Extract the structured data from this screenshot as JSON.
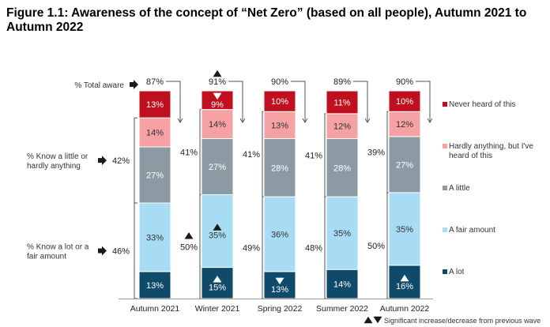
{
  "title": "Figure 1.1: Awareness of the concept of “Net Zero” (based on all people), Autumn 2021 to Autumn 2022",
  "chart_data": {
    "type": "bar",
    "stacked": true,
    "title": "Figure 1.1: Awareness of the concept of “Net Zero” (based on all people), Autumn 2021 to Autumn 2022",
    "categories": [
      "Autumn 2021",
      "Winter 2021",
      "Spring 2022",
      "Summer 2022",
      "Autumn 2022"
    ],
    "unit": "%",
    "ylim": [
      0,
      100
    ],
    "series": [
      {
        "name": "A lot",
        "color": "#0f4a6a",
        "label_color": "#ffffff",
        "values": [
          13,
          15,
          13,
          14,
          16
        ]
      },
      {
        "name": "A fair amount",
        "color": "#a8dcf5",
        "label_color": "#333333",
        "values": [
          33,
          35,
          36,
          35,
          35
        ]
      },
      {
        "name": "A little",
        "color": "#8c9ba3",
        "label_color": "#ffffff",
        "values": [
          27,
          27,
          28,
          28,
          27
        ]
      },
      {
        "name": "Hardly anything, but I've heard of this",
        "color": "#f6a1a3",
        "label_color": "#333333",
        "values": [
          14,
          14,
          13,
          12,
          12
        ]
      },
      {
        "name": "Never heard of this",
        "color": "#c0101f",
        "label_color": "#ffffff",
        "values": [
          13,
          9,
          10,
          11,
          10
        ]
      }
    ],
    "summary_rows": [
      {
        "label": "% Total aware",
        "group": "total",
        "values": [
          "87%",
          "91%",
          "90%",
          "89%",
          "90%"
        ]
      },
      {
        "label": "% Know a little or hardly anything",
        "group": "little",
        "values": [
          "42%",
          "41%",
          "41%",
          "41%",
          "39%"
        ]
      },
      {
        "label": "% Know a lot or a fair amount",
        "group": "lot",
        "values": [
          "46%",
          "50%",
          "49%",
          "48%",
          "50%"
        ]
      }
    ],
    "significance_markers": [
      {
        "category": "Winter 2021",
        "target": "total",
        "direction": "up"
      },
      {
        "category": "Winter 2021",
        "target": "Never heard of this",
        "direction": "down"
      },
      {
        "category": "Winter 2021",
        "target": "A fair amount",
        "direction": "up"
      },
      {
        "category": "Winter 2021",
        "target": "A lot",
        "direction": "up"
      },
      {
        "category": "Winter 2021",
        "target": "lot",
        "direction": "up"
      },
      {
        "category": "Spring 2022",
        "target": "A lot",
        "direction": "down"
      },
      {
        "category": "Autumn 2022",
        "target": "A lot",
        "direction": "up"
      }
    ],
    "footnote": "Significant increase/decrease from previous wave",
    "colors": {
      "marker": "#1a1a1a",
      "bracket": "#555555",
      "axis": "#999999"
    }
  }
}
